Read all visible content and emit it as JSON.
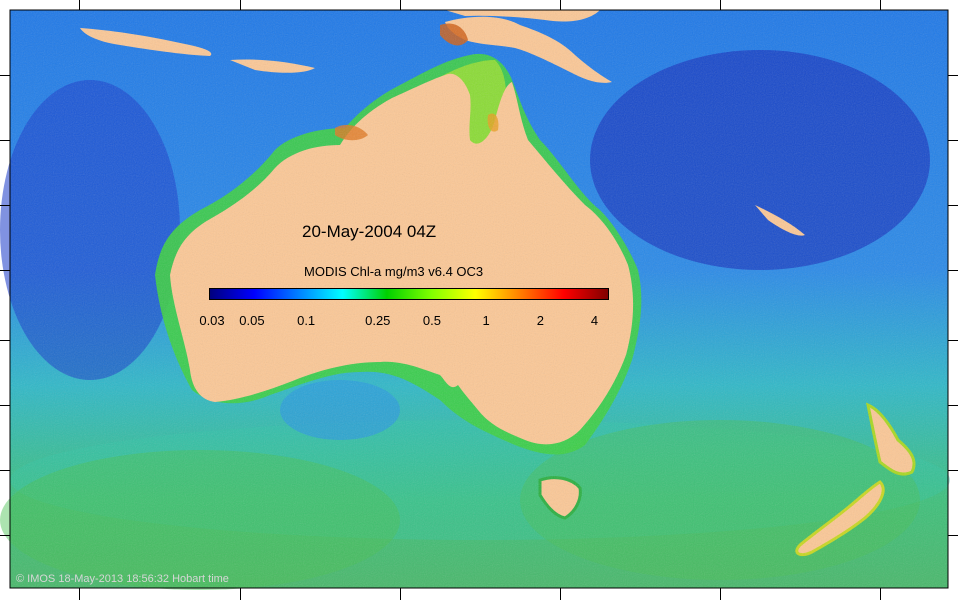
{
  "map": {
    "timestamp": "20-May-2004 04Z",
    "colorbar": {
      "title": "MODIS Chl-a mg/m3 v6.4 OC3",
      "tick_labels": [
        "0.03",
        "0.05",
        "0.1",
        "0.25",
        "0.5",
        "1",
        "2",
        "4"
      ],
      "tick_values": [
        0.03,
        0.05,
        0.1,
        0.25,
        0.5,
        1,
        2,
        4
      ],
      "scale": "log",
      "range": [
        0.03,
        5
      ],
      "colors": [
        "#00007f",
        "#0000ff",
        "#0080ff",
        "#00ffff",
        "#00d000",
        "#80ff00",
        "#ffff00",
        "#ff8000",
        "#ff0000",
        "#800000"
      ]
    },
    "copyright": "© IMOS 18-May-2013 18:56:32 Hobart time",
    "colors": {
      "land": "#fcc896",
      "open_ocean": "#1a5be0",
      "coastal": "#3ccf3c",
      "high_chl": "#d04010"
    }
  }
}
